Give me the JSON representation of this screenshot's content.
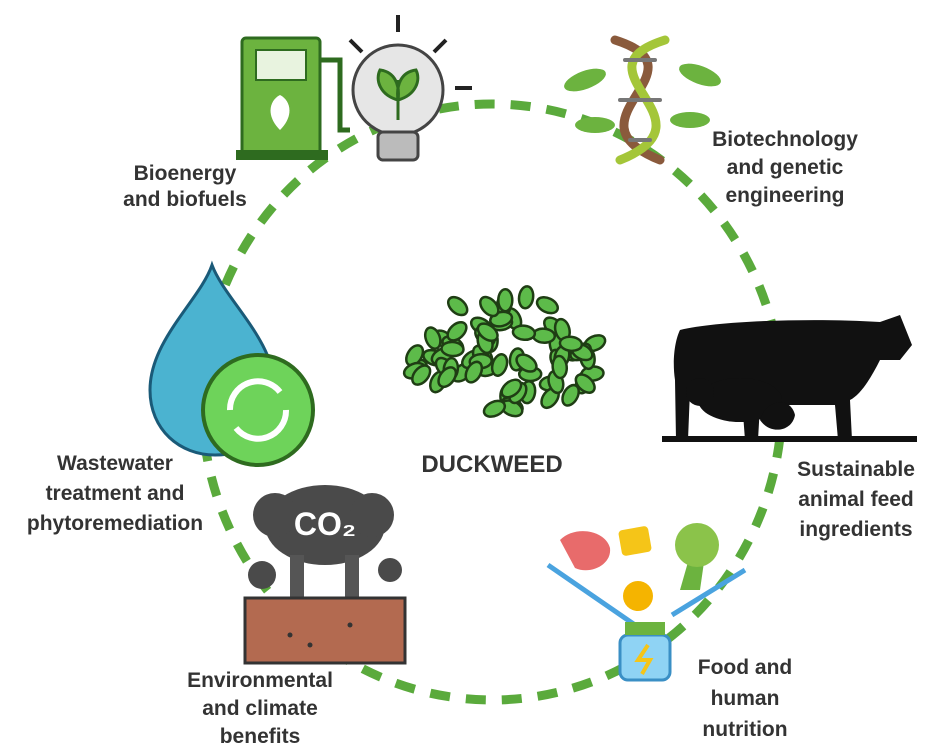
{
  "center": {
    "label": "DUCKWEED"
  },
  "nodes": [
    {
      "label": [
        "Bioenergy",
        "and biofuels"
      ]
    },
    {
      "label": [
        "Biotechnology",
        "and genetic",
        "engineering"
      ]
    },
    {
      "label": [
        "Sustainable",
        "animal feed",
        "ingredients"
      ]
    },
    {
      "label": [
        "Food and",
        "human",
        "nutrition"
      ]
    },
    {
      "label": [
        "Environmental",
        "and climate",
        "benefits"
      ],
      "icon_text": "CO₂"
    },
    {
      "label": [
        "Wastewater",
        "treatment and",
        "phytoremediation"
      ]
    }
  ]
}
